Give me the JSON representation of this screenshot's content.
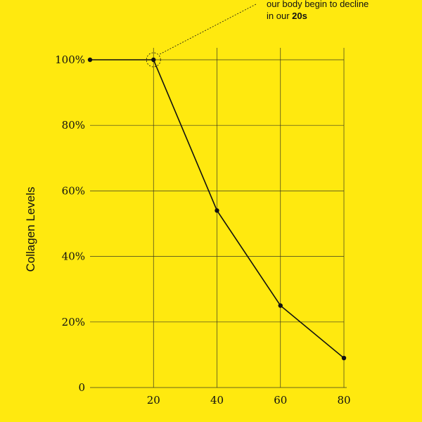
{
  "chart_data": {
    "type": "line",
    "ylabel": "Collagen Levels",
    "x_ticks": [
      "20",
      "40",
      "60",
      "80"
    ],
    "y_ticks": [
      "0",
      "20%",
      "40%",
      "60%",
      "80%",
      "100%"
    ],
    "xlim": [
      0,
      80
    ],
    "ylim": [
      0,
      100
    ],
    "grid": true,
    "series": [
      {
        "x": [
          0,
          20,
          40,
          60,
          80
        ],
        "y": [
          100,
          100,
          54,
          25,
          9
        ]
      }
    ],
    "annotation": {
      "line1": "our body begin to decline",
      "line2_prefix": "in our ",
      "line2_bold": "20s",
      "target_x": 20,
      "target_y": 100
    }
  },
  "colors": {
    "background": "#FFE90F",
    "line": "#111111",
    "grid": "#3a3a20",
    "text": "#111111"
  }
}
